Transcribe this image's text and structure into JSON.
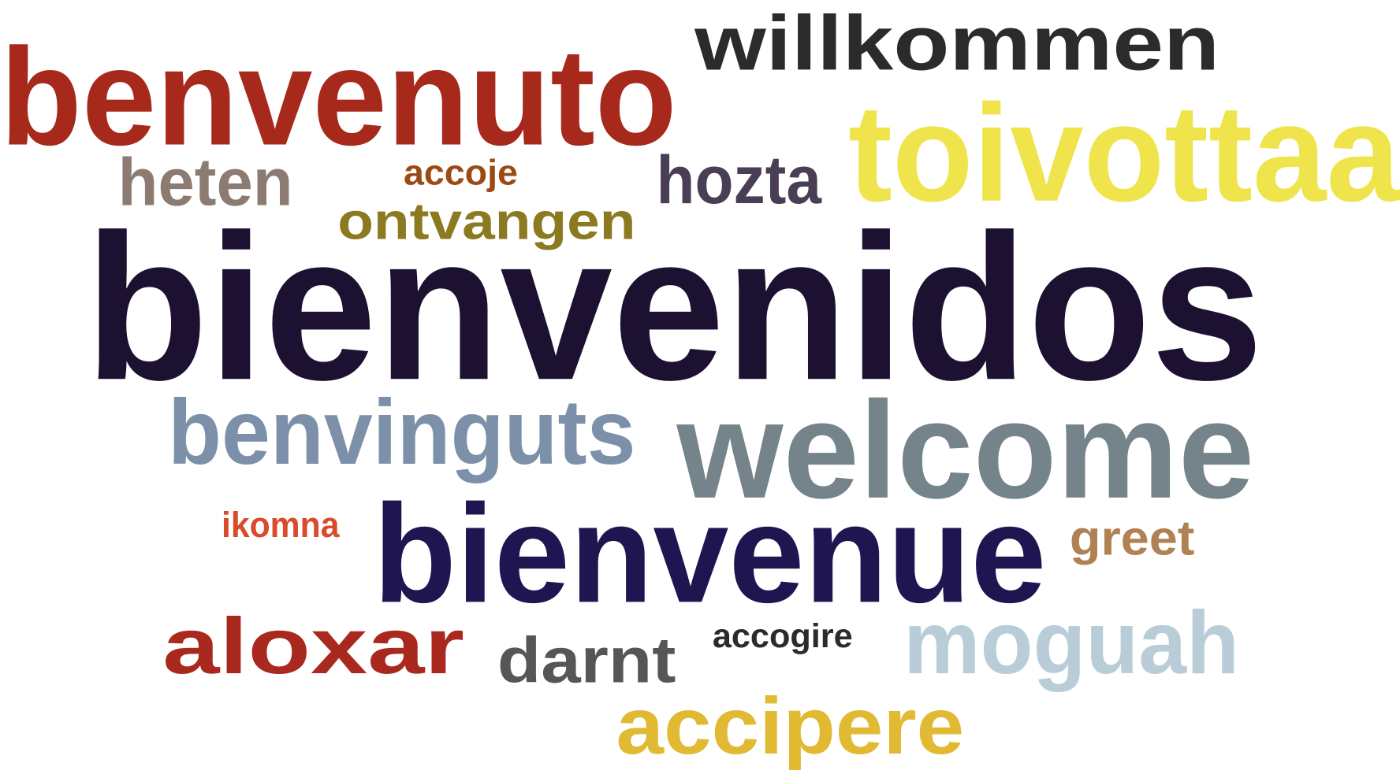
{
  "words": [
    {
      "text": "benvenuto",
      "color": "#a6291c"
    },
    {
      "text": "willkommen",
      "color": "#2b2b2b"
    },
    {
      "text": "toivottaa",
      "color": "#f0e44c"
    },
    {
      "text": "heten",
      "color": "#8b7b71"
    },
    {
      "text": "accoje",
      "color": "#9b4a14"
    },
    {
      "text": "hozta",
      "color": "#4a3e56"
    },
    {
      "text": "ontvangen",
      "color": "#8b7a20"
    },
    {
      "text": "bienvenidos",
      "color": "#1d1131"
    },
    {
      "text": "benvinguts",
      "color": "#7c91a9"
    },
    {
      "text": "welcome",
      "color": "#75838b"
    },
    {
      "text": "ikomna",
      "color": "#d94b2b"
    },
    {
      "text": "bienvenue",
      "color": "#1f1551"
    },
    {
      "text": "greet",
      "color": "#b08152"
    },
    {
      "text": "aloxar",
      "color": "#a9291f"
    },
    {
      "text": "darnt",
      "color": "#565656"
    },
    {
      "text": "accogire",
      "color": "#2b2b2b"
    },
    {
      "text": "moguah",
      "color": "#b9cdd9"
    },
    {
      "text": "accipere",
      "color": "#e1b932"
    }
  ]
}
